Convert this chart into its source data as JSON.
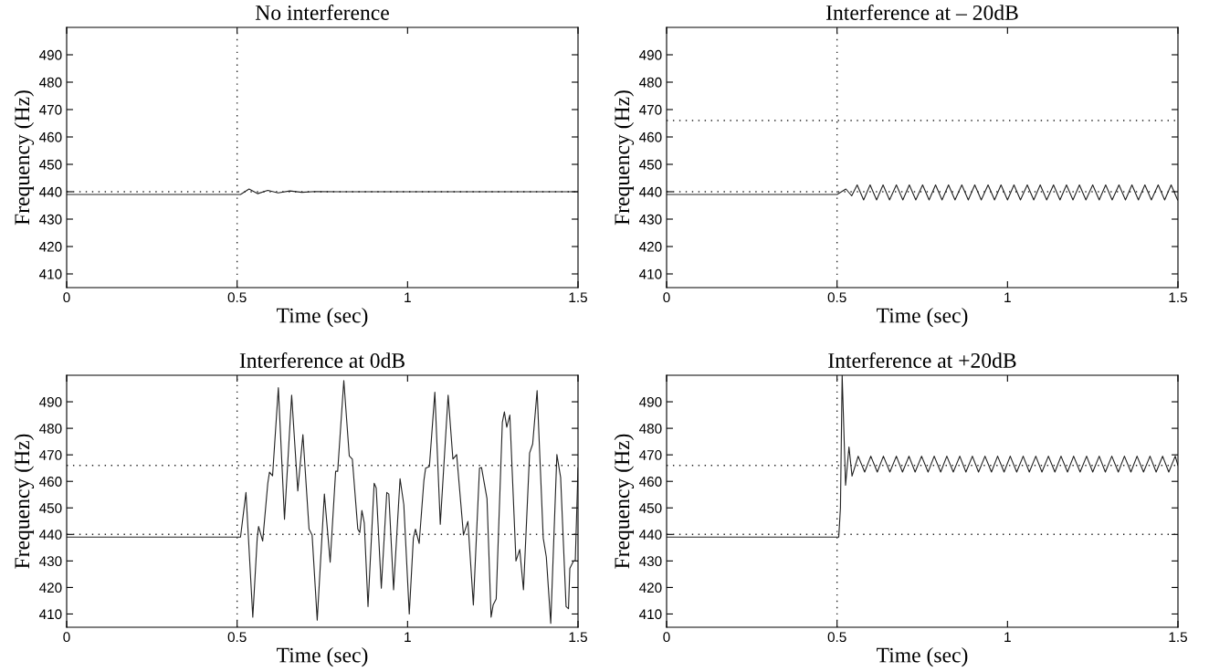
{
  "chart_data": [
    {
      "type": "line",
      "title": "No interference",
      "xlabel": "Time (sec)",
      "ylabel": "Frequency (Hz)",
      "xlim": [
        0,
        1.5
      ],
      "ylim": [
        405,
        500
      ],
      "xticks": [
        0,
        0.5,
        1,
        1.5
      ],
      "yticks": [
        410,
        420,
        430,
        440,
        450,
        460,
        470,
        480,
        490
      ],
      "x": [
        0,
        0.5,
        0.51,
        0.535,
        0.56,
        0.59,
        0.62,
        0.655,
        0.69,
        0.73,
        0.8,
        1.5
      ],
      "series": [
        {
          "color": "#222222",
          "values": [
            439,
            439,
            439,
            441,
            439.3,
            440.5,
            439.6,
            440.3,
            439.8,
            440.1,
            440,
            440
          ]
        }
      ],
      "ref_lines": [
        {
          "axis": "x",
          "value": 0.5,
          "color": "#222222",
          "line_style": "dotted"
        },
        {
          "axis": "y",
          "value": 440,
          "color": "#222222",
          "line_style": "dotted"
        }
      ]
    },
    {
      "type": "line",
      "title": "Interference at – 20dB",
      "xlabel": "Time (sec)",
      "ylabel": "Frequency (Hz)",
      "xlim": [
        0,
        1.5
      ],
      "ylim": [
        405,
        500
      ],
      "xticks": [
        0,
        0.5,
        1,
        1.5
      ],
      "yticks": [
        410,
        420,
        430,
        440,
        450,
        460,
        470,
        480,
        490
      ],
      "x": [
        0,
        0.5,
        0.526,
        0.543,
        0.559,
        0.578,
        0.597,
        0.616,
        0.635,
        0.654,
        0.674,
        0.693,
        0.712,
        0.731,
        0.751,
        0.77,
        0.789,
        0.808,
        0.827,
        0.846,
        0.866,
        0.885,
        0.904,
        0.923,
        0.943,
        0.962,
        0.981,
        1.0,
        1.019,
        1.038,
        1.058,
        1.077,
        1.096,
        1.115,
        1.135,
        1.154,
        1.173,
        1.192,
        1.211,
        1.23,
        1.25,
        1.269,
        1.288,
        1.307,
        1.327,
        1.346,
        1.365,
        1.384,
        1.403,
        1.422,
        1.442,
        1.461,
        1.48,
        1.499
      ],
      "series": [
        {
          "color": "#222222",
          "values": [
            439,
            439,
            441,
            438.5,
            442.5,
            437,
            442.5,
            437,
            442.5,
            437,
            442.5,
            437,
            442.5,
            437,
            442.5,
            437,
            442.5,
            437,
            442.5,
            437,
            442.5,
            437,
            442.5,
            437,
            442.5,
            437,
            442.5,
            437,
            442.5,
            437,
            442.5,
            437,
            442.5,
            437,
            442.5,
            437,
            442.5,
            437,
            442.5,
            437,
            442.5,
            437,
            442.5,
            437,
            442.5,
            437,
            442.5,
            437,
            442.5,
            437,
            442.5,
            437,
            442.5,
            437
          ]
        }
      ],
      "ref_lines": [
        {
          "axis": "x",
          "value": 0.5,
          "color": "#222222",
          "line_style": "dotted"
        },
        {
          "axis": "y",
          "value": 440,
          "color": "#222222",
          "line_style": "dotted"
        },
        {
          "axis": "y",
          "value": 466,
          "color": "#222222",
          "line_style": "dotted"
        }
      ]
    },
    {
      "type": "line",
      "title": "Interference at 0dB",
      "xlabel": "Time (sec)",
      "ylabel": "Frequency (Hz)",
      "xlim": [
        0,
        1.5
      ],
      "ylim": [
        405,
        500
      ],
      "xticks": [
        0,
        0.5,
        1,
        1.5
      ],
      "yticks": [
        410,
        420,
        430,
        440,
        450,
        460,
        470,
        480,
        490
      ],
      "x": [
        0,
        0.51,
        0.526,
        0.546,
        0.559,
        0.563,
        0.575,
        0.59,
        0.595,
        0.604,
        0.621,
        0.639,
        0.66,
        0.678,
        0.693,
        0.711,
        0.72,
        0.735,
        0.756,
        0.773,
        0.789,
        0.795,
        0.813,
        0.829,
        0.838,
        0.854,
        0.86,
        0.866,
        0.873,
        0.884,
        0.902,
        0.908,
        0.923,
        0.939,
        0.945,
        0.959,
        0.978,
        0.989,
        1.005,
        1.017,
        1.023,
        1.034,
        1.048,
        1.053,
        1.064,
        1.08,
        1.096,
        1.119,
        1.133,
        1.144,
        1.164,
        1.177,
        1.193,
        1.211,
        1.217,
        1.233,
        1.245,
        1.251,
        1.26,
        1.278,
        1.284,
        1.291,
        1.3,
        1.318,
        1.329,
        1.34,
        1.358,
        1.367,
        1.38,
        1.398,
        1.407,
        1.42,
        1.438,
        1.449,
        1.465,
        1.472,
        1.476,
        1.487,
        1.492,
        1.5
      ],
      "series": [
        {
          "color": "#222222",
          "values": [
            439,
            439,
            455.8,
            408.8,
            438.6,
            443,
            437.5,
            459.3,
            463.5,
            462.1,
            495.3,
            445.7,
            492.5,
            456.4,
            477.6,
            442,
            439.8,
            407.7,
            455.2,
            429.5,
            463.8,
            463.8,
            498,
            469.6,
            468.4,
            442,
            440.7,
            449,
            444.4,
            412.8,
            459.3,
            457.5,
            419.7,
            455.8,
            455.2,
            419.1,
            461,
            451.2,
            410,
            438.6,
            442,
            436.6,
            460.4,
            465,
            465.6,
            493.6,
            443.8,
            492.5,
            468.4,
            470.1,
            439.8,
            444.9,
            413.4,
            465,
            465.2,
            453.5,
            408.8,
            413.4,
            415.7,
            482.2,
            486.2,
            480.4,
            485,
            430,
            434.3,
            419.1,
            470.7,
            474.1,
            494.2,
            438.6,
            431.5,
            406.5,
            470.1,
            461.5,
            412.8,
            412,
            427.2,
            430,
            430,
            465
          ]
        }
      ],
      "ref_lines": [
        {
          "axis": "x",
          "value": 0.5,
          "color": "#222222",
          "line_style": "dotted"
        },
        {
          "axis": "y",
          "value": 440,
          "color": "#222222",
          "line_style": "dotted"
        },
        {
          "axis": "y",
          "value": 466,
          "color": "#222222",
          "line_style": "dotted"
        }
      ]
    },
    {
      "type": "line",
      "title": "Interference at +20dB",
      "xlabel": "Time (sec)",
      "ylabel": "Frequency (Hz)",
      "xlim": [
        0,
        1.5
      ],
      "ylim": [
        405,
        500
      ],
      "xticks": [
        0,
        0.5,
        1,
        1.5
      ],
      "yticks": [
        410,
        420,
        430,
        440,
        450,
        460,
        470,
        480,
        490
      ],
      "x": [
        0,
        0.505,
        0.51,
        0.515,
        0.525,
        0.535,
        0.544,
        0.562,
        0.581,
        0.599,
        0.618,
        0.636,
        0.655,
        0.674,
        0.692,
        0.711,
        0.729,
        0.748,
        0.767,
        0.785,
        0.804,
        0.822,
        0.841,
        0.86,
        0.878,
        0.897,
        0.915,
        0.934,
        0.953,
        0.971,
        0.99,
        1.008,
        1.027,
        1.046,
        1.064,
        1.083,
        1.101,
        1.12,
        1.139,
        1.157,
        1.176,
        1.194,
        1.213,
        1.232,
        1.25,
        1.269,
        1.287,
        1.306,
        1.325,
        1.343,
        1.362,
        1.38,
        1.399,
        1.418,
        1.436,
        1.455,
        1.473,
        1.492,
        1.5
      ],
      "series": [
        {
          "color": "#222222",
          "values": [
            439,
            439,
            450,
            500,
            458.5,
            473,
            462,
            469.5,
            463.5,
            469.5,
            463.5,
            469.5,
            463.5,
            469.5,
            463.5,
            469.5,
            463.5,
            469.5,
            463.5,
            469.5,
            463.5,
            469.5,
            463.5,
            469.5,
            463.5,
            469.5,
            463.5,
            469.5,
            463.5,
            469.5,
            463.5,
            469.5,
            463.5,
            469.5,
            463.5,
            469.5,
            463.5,
            469.5,
            463.5,
            469.5,
            463.5,
            469.5,
            463.5,
            469.5,
            463.5,
            469.5,
            463.5,
            469.5,
            463.5,
            469.5,
            463.5,
            469.5,
            463.5,
            469.5,
            463.5,
            469.5,
            463.5,
            469.5,
            466
          ]
        }
      ],
      "ref_lines": [
        {
          "axis": "x",
          "value": 0.5,
          "color": "#222222",
          "line_style": "dotted"
        },
        {
          "axis": "y",
          "value": 440,
          "color": "#222222",
          "line_style": "dotted"
        },
        {
          "axis": "y",
          "value": 466,
          "color": "#222222",
          "line_style": "dotted"
        }
      ]
    }
  ]
}
